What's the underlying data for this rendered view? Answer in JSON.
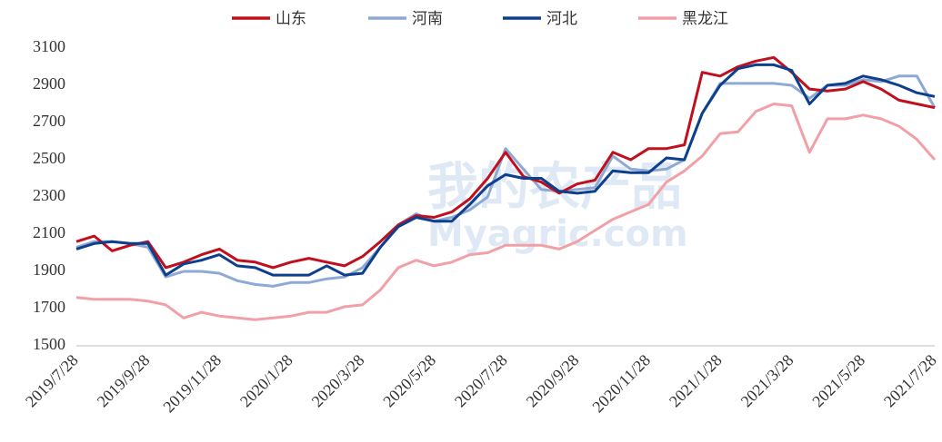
{
  "chart_data": {
    "type": "line",
    "watermark": [
      "我的农产品",
      "Myagric.com"
    ],
    "categories": [
      "2019/7/28",
      null,
      null,
      null,
      "2019/9/28",
      null,
      null,
      null,
      "2019/11/28",
      null,
      null,
      null,
      "2020/1/28",
      null,
      null,
      null,
      "2020/3/28",
      null,
      null,
      null,
      "2020/5/28",
      null,
      null,
      null,
      "2020/7/28",
      null,
      null,
      null,
      "2020/9/28",
      null,
      null,
      null,
      "2020/11/28",
      null,
      null,
      null,
      "2021/1/28",
      null,
      null,
      null,
      "2021/3/28",
      null,
      null,
      null,
      "2021/5/28",
      null,
      null,
      null,
      "2021/7/28"
    ],
    "series": [
      {
        "name": "山东",
        "color": "#c0101e",
        "values": [
          2060,
          2090,
          2010,
          2040,
          2060,
          1920,
          1950,
          1990,
          2020,
          1960,
          1950,
          1920,
          1950,
          1970,
          1950,
          1930,
          1980,
          2060,
          2150,
          2200,
          2190,
          2220,
          2290,
          2400,
          2540,
          2410,
          2380,
          2320,
          2370,
          2390,
          2540,
          2500,
          2560,
          2560,
          2580,
          2970,
          2950,
          3000,
          3030,
          3050,
          2970,
          2880,
          2870,
          2880,
          2920,
          2880,
          2820,
          2800,
          2780
        ]
      },
      {
        "name": "河南",
        "color": "#8ea9d3",
        "values": [
          2030,
          2060,
          2060,
          2050,
          2030,
          1870,
          1900,
          1900,
          1890,
          1850,
          1830,
          1820,
          1840,
          1840,
          1860,
          1870,
          1920,
          2030,
          2150,
          2210,
          2170,
          2190,
          2230,
          2300,
          2560,
          2450,
          2340,
          2330,
          2340,
          2350,
          2520,
          2450,
          2440,
          2450,
          2500,
          2750,
          2910,
          2910,
          2910,
          2910,
          2900,
          2830,
          2900,
          2900,
          2930,
          2920,
          2950,
          2950,
          2780
        ]
      },
      {
        "name": "河北",
        "color": "#0d3f8c",
        "values": [
          2020,
          2050,
          2060,
          2050,
          2050,
          1880,
          1940,
          1960,
          1990,
          1930,
          1920,
          1880,
          1880,
          1880,
          1930,
          1880,
          1890,
          2030,
          2140,
          2190,
          2170,
          2170,
          2260,
          2360,
          2420,
          2400,
          2400,
          2330,
          2320,
          2330,
          2440,
          2430,
          2430,
          2510,
          2500,
          2750,
          2900,
          2990,
          3010,
          3010,
          2980,
          2800,
          2900,
          2910,
          2950,
          2930,
          2900,
          2860,
          2840
        ]
      },
      {
        "name": "黑龙江",
        "color": "#f2a0a8",
        "values": [
          1760,
          1750,
          1750,
          1750,
          1740,
          1720,
          1650,
          1680,
          1660,
          1650,
          1640,
          1650,
          1660,
          1680,
          1680,
          1710,
          1720,
          1800,
          1920,
          1960,
          1930,
          1950,
          1990,
          2000,
          2040,
          2040,
          2040,
          2020,
          2060,
          2120,
          2180,
          2220,
          2260,
          2380,
          2440,
          2520,
          2640,
          2650,
          2760,
          2800,
          2790,
          2540,
          2720,
          2720,
          2740,
          2720,
          2680,
          2610,
          2500
        ]
      }
    ],
    "ylim": [
      1500,
      3100
    ],
    "yticks": [
      1500,
      1700,
      1900,
      2100,
      2300,
      2500,
      2700,
      2900,
      3100
    ]
  }
}
